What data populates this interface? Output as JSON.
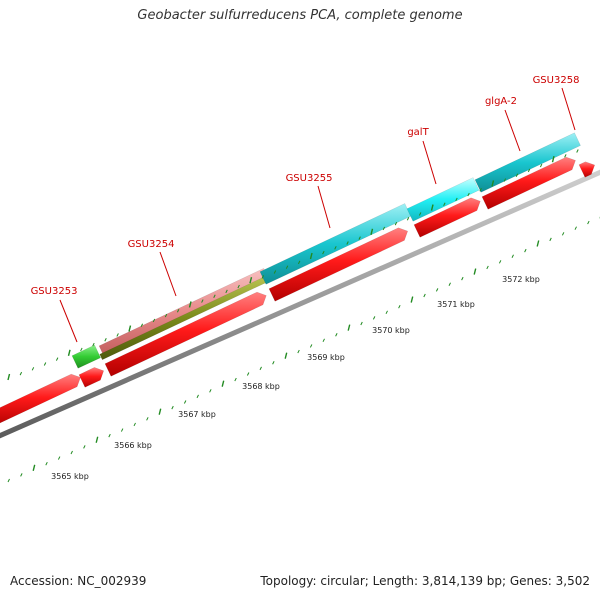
{
  "title": "Geobacter sulfurreducens PCA, complete genome",
  "footer": {
    "accession": "Accession: NC_002939",
    "summary": "Topology: circular; Length: 3,814,139 bp; Genes: 3,502"
  },
  "colors": {
    "cds": "#ff1a1a",
    "gene_cyan": "#19c6cf",
    "gene_green": "#33cc33",
    "gene_pink": "#e88a8a",
    "gene_olive": "#7a8a1a",
    "label": "#cc0000",
    "tick": "#228b22",
    "backbone": "#888888"
  },
  "genes": [
    {
      "label": "GSU3253"
    },
    {
      "label": "GSU3254"
    },
    {
      "label": "GSU3255"
    },
    {
      "label": "galT"
    },
    {
      "label": "glgA-2"
    },
    {
      "label": "GSU3258"
    }
  ],
  "scale": {
    "unit": "kbp",
    "labels": [
      "3565 kbp",
      "3566 kbp",
      "3567 kbp",
      "3568 kbp",
      "3569 kbp",
      "3570 kbp",
      "3571 kbp",
      "3572 kbp"
    ]
  }
}
